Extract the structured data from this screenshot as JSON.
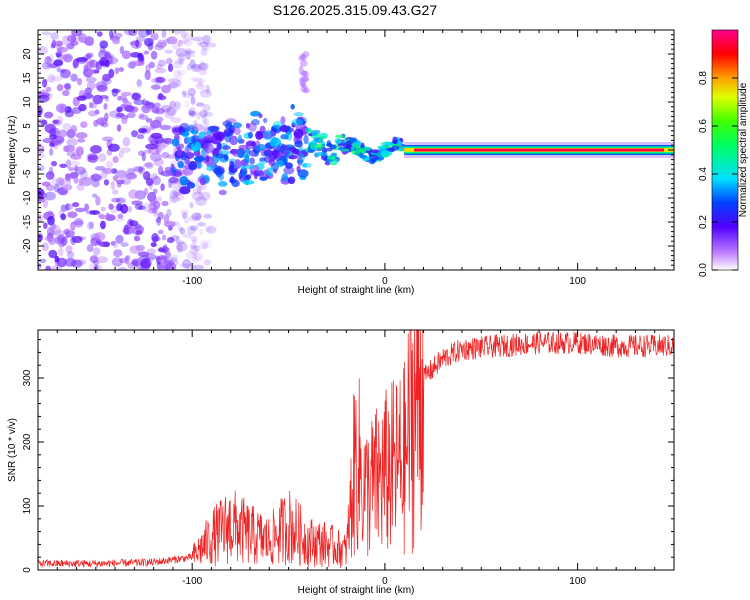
{
  "page": {
    "title": "S126.2025.315.09.43.G27"
  },
  "chart_data": [
    {
      "type": "heatmap",
      "title": "S126.2025.315.09.43.G27",
      "xlabel": "Height of straight line (km)",
      "ylabel": "Frequency (Hz)",
      "xlim": [
        -180,
        150
      ],
      "ylim": [
        -25,
        25
      ],
      "x_ticks": [
        -100,
        0,
        100
      ],
      "y_ticks": [
        -20,
        -15,
        -10,
        -5,
        0,
        5,
        10,
        15,
        20
      ],
      "colorbar": {
        "label": "Normalized spectral amplitude",
        "range": [
          0,
          1
        ],
        "ticks": [
          0.0,
          0.2,
          0.4,
          0.6,
          0.8
        ]
      },
      "features": [
        {
          "name": "noise region",
          "x_range": [
            -180,
            -110
          ],
          "y_range": [
            -25,
            25
          ],
          "amplitude": 0.05
        },
        {
          "name": "transition blobs",
          "x_range": [
            -110,
            -40
          ],
          "y_range": [
            -8,
            8
          ],
          "amplitude": 0.2
        },
        {
          "name": "spike",
          "x": -42,
          "y_range": [
            12,
            20
          ],
          "amplitude": 0.05
        },
        {
          "name": "dominant line",
          "x_range": [
            10,
            150
          ],
          "frequency": 0,
          "amplitude": 0.95
        }
      ]
    },
    {
      "type": "line",
      "xlabel": "Height of straight line (km)",
      "ylabel": "SNR (10 * v/v)",
      "xlim": [
        -180,
        150
      ],
      "ylim": [
        0,
        375
      ],
      "x_ticks": [
        -100,
        0,
        100
      ],
      "y_ticks": [
        0,
        100,
        200,
        300
      ],
      "series": [
        {
          "name": "SNR",
          "color": "#ee2222",
          "x": [
            -180,
            -150,
            -120,
            -100,
            -90,
            -80,
            -70,
            -60,
            -50,
            -40,
            -30,
            -20,
            -15,
            -10,
            0,
            10,
            15,
            20,
            30,
            40,
            60,
            80,
            100,
            120,
            150
          ],
          "y": [
            10,
            10,
            12,
            20,
            50,
            70,
            55,
            45,
            70,
            45,
            40,
            30,
            180,
            120,
            150,
            170,
            260,
            300,
            330,
            345,
            350,
            355,
            355,
            350,
            350
          ]
        }
      ]
    }
  ]
}
